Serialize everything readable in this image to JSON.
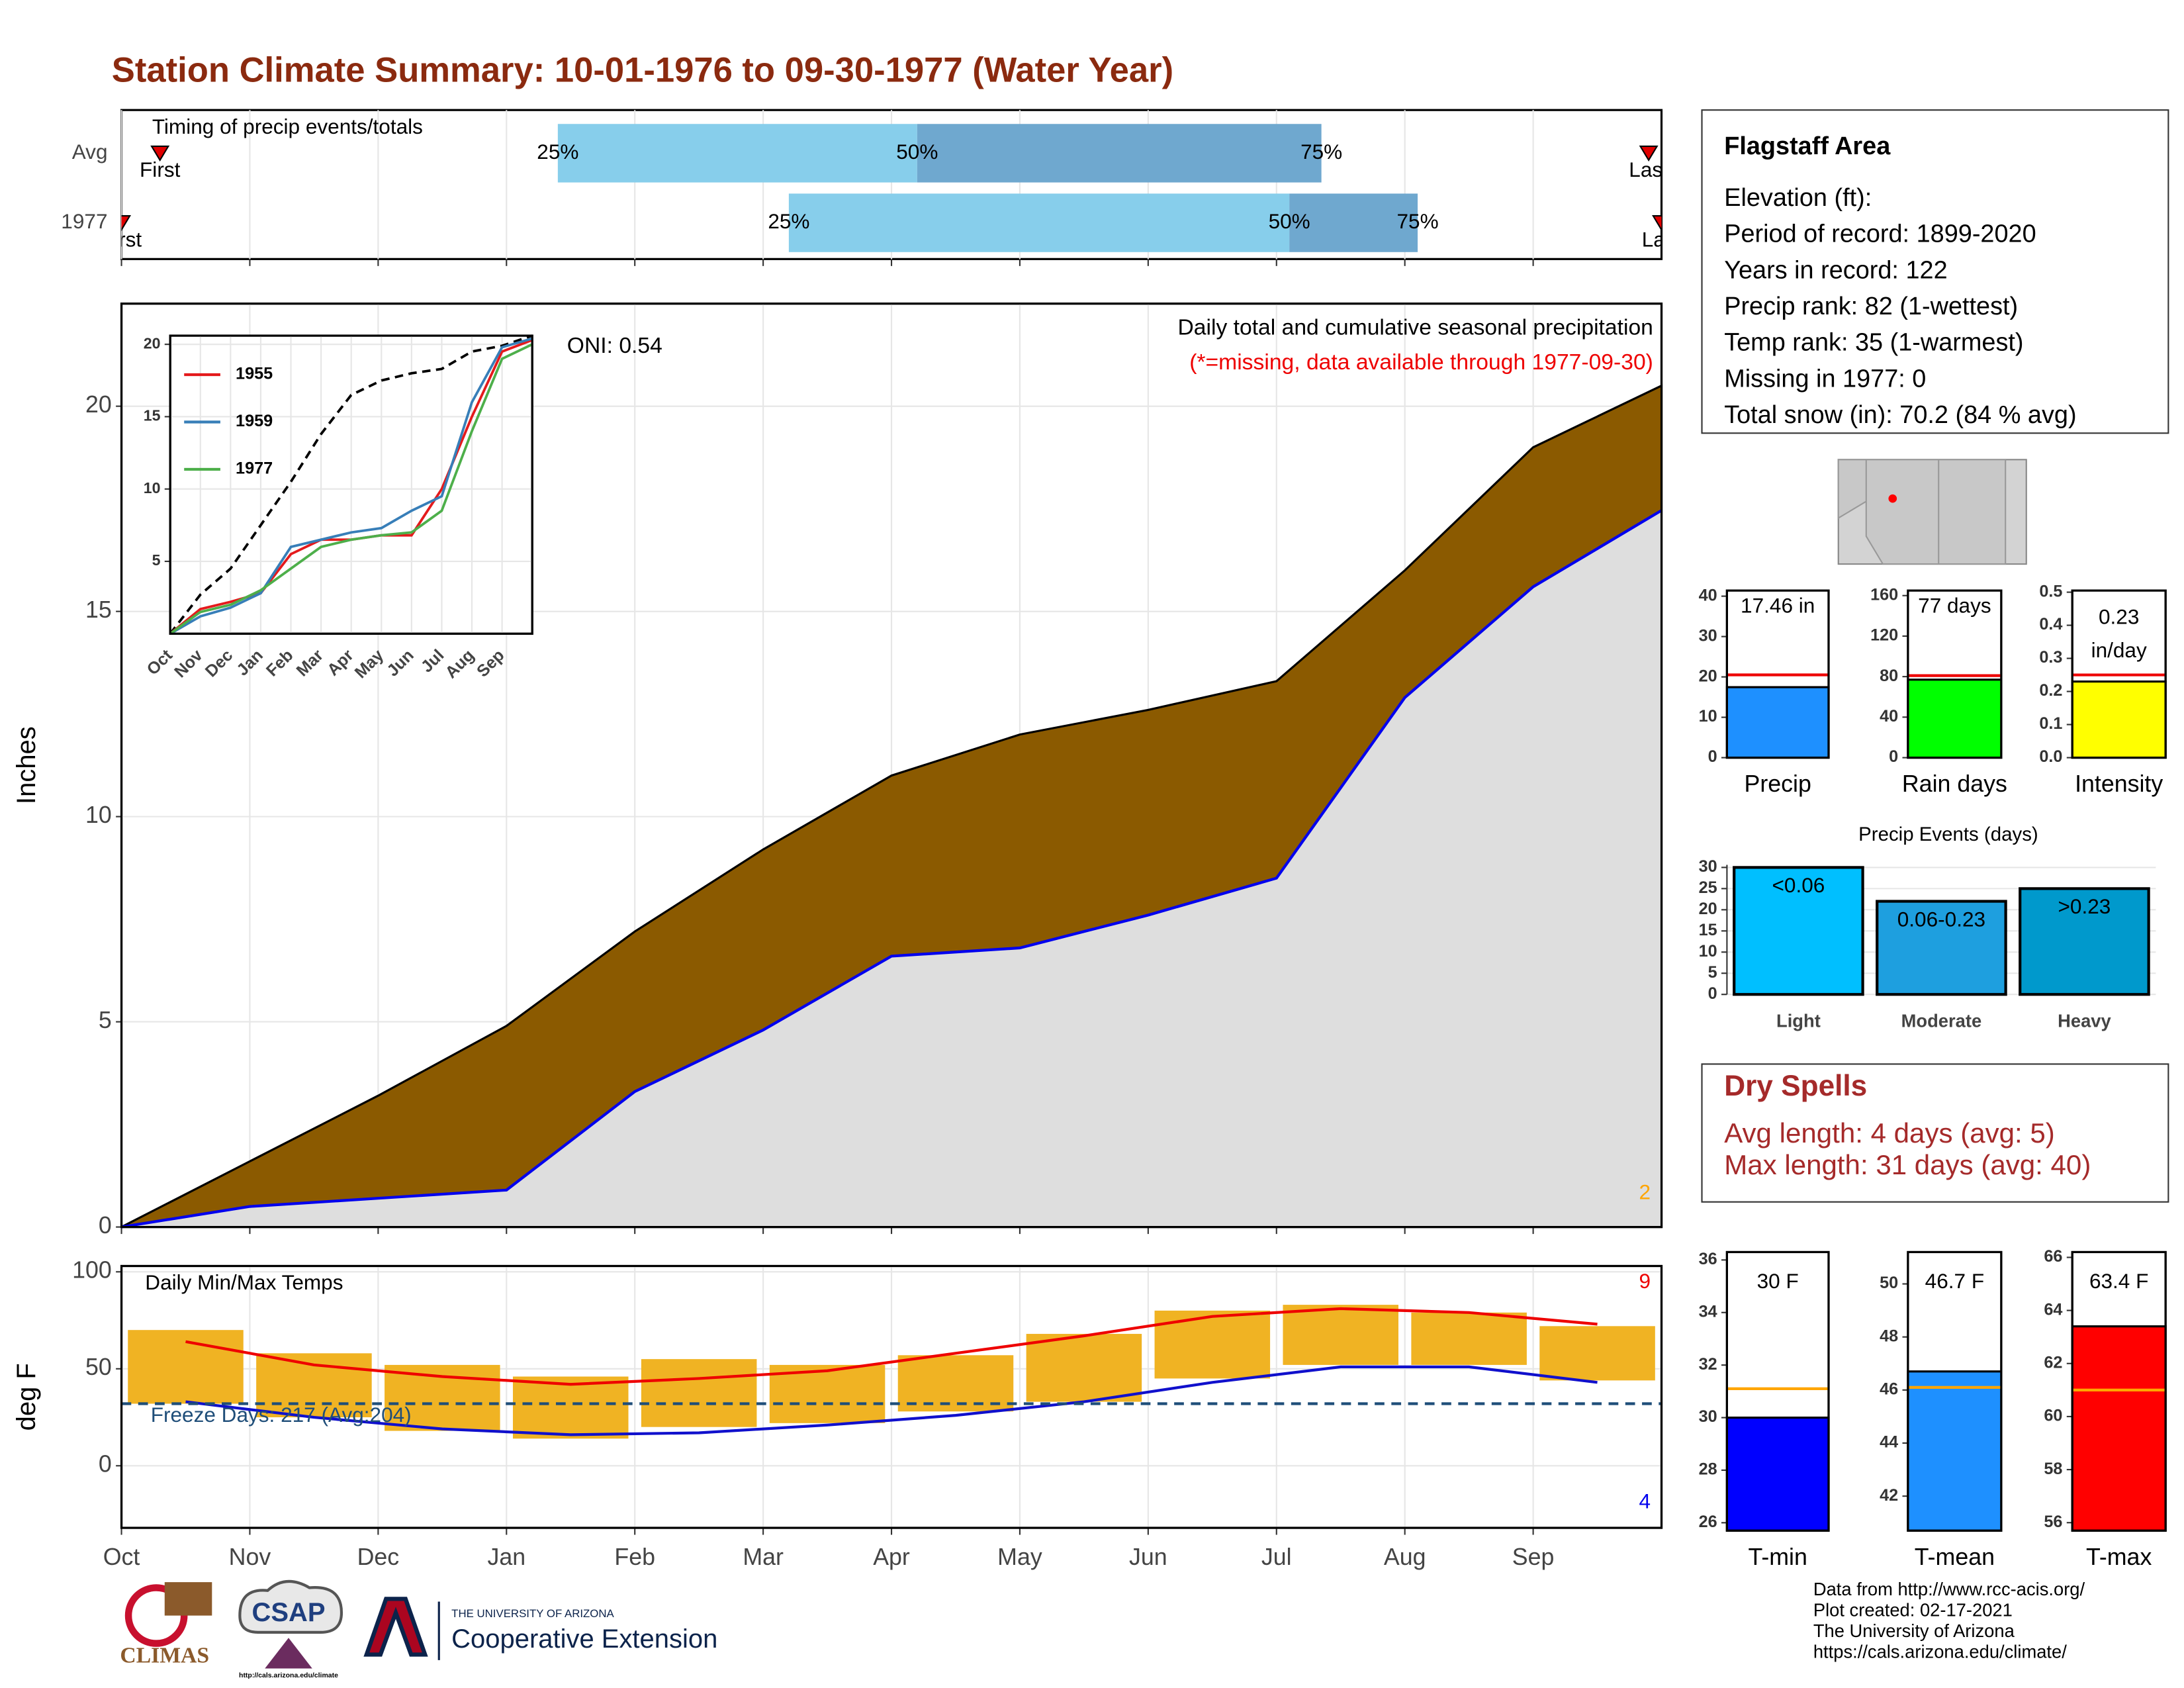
{
  "title": "Station Climate Summary: 10-01-1976 to 09-30-1977 (Water Year)",
  "chart_data": [
    {
      "type": "timing",
      "title": "Timing of precip events/totals",
      "categories": [
        "Avg",
        "1977"
      ],
      "xlim": [
        0,
        12
      ],
      "first_label": "First",
      "last_label": "Last",
      "quantile_labels": [
        "25%",
        "50%",
        "75%"
      ],
      "color_low": "#87ceeb",
      "color_high": "#6fa8cf",
      "marker_color": "#e00000",
      "rows": [
        {
          "first": 0.3,
          "q25": 3.4,
          "q50": 6.2,
          "q75": 9.35,
          "last": 11.9
        },
        {
          "first": 0.0,
          "q25": 5.2,
          "q50": 9.1,
          "q75": 10.1,
          "last": 12.0
        }
      ]
    },
    {
      "type": "area",
      "title": "Daily total and cumulative seasonal precipitation",
      "subtitle": "(*=missing, data available through 1977-09-30)",
      "annotation": "ONI: 0.54",
      "y_label": "Inches",
      "categories": [
        "Oct",
        "Nov",
        "Dec",
        "Jan",
        "Feb",
        "Mar",
        "Apr",
        "May",
        "Jun",
        "Jul",
        "Aug",
        "Sep"
      ],
      "xlim": [
        0,
        12
      ],
      "ylim": [
        0,
        22.5
      ],
      "yticks": [
        0,
        5,
        10,
        15,
        20
      ],
      "average": {
        "color": "#8b5a00",
        "values": [
          1.6,
          3.2,
          4.9,
          7.2,
          9.2,
          11.0,
          12.0,
          12.6,
          13.3,
          16.0,
          19.0,
          20.5
        ]
      },
      "observed": {
        "color": "#0000ee",
        "values": [
          0.5,
          0.7,
          0.9,
          3.3,
          4.8,
          6.6,
          6.8,
          7.6,
          8.5,
          12.9,
          15.6,
          17.46
        ]
      },
      "observed_fill": "#dedede",
      "extreme_count": 2,
      "extreme_color": "#ffa500"
    },
    {
      "type": "line",
      "categories": [
        "Oct",
        "Nov",
        "Dec",
        "Jan",
        "Feb",
        "Mar",
        "Apr",
        "May",
        "Jun",
        "Jul",
        "Aug",
        "Sep"
      ],
      "xlim": [
        0,
        12
      ],
      "ylim": [
        0,
        20.6
      ],
      "yticks": [
        5,
        10,
        15,
        20
      ],
      "average": {
        "color": "#000000",
        "values": [
          2.7,
          4.5,
          7.5,
          10.5,
          13.8,
          16.5,
          17.5,
          18.0,
          18.3,
          19.5,
          19.9,
          20.6
        ]
      },
      "series": [
        {
          "name": "1955",
          "color": "#e41a1c",
          "values": [
            1.7,
            2.2,
            2.8,
            5.5,
            6.5,
            6.5,
            6.8,
            6.8,
            10.0,
            15.0,
            19.5,
            20.3
          ]
        },
        {
          "name": "1959",
          "color": "#377eb8",
          "values": [
            1.2,
            1.8,
            2.8,
            6.0,
            6.5,
            7.0,
            7.3,
            8.5,
            9.5,
            16.0,
            19.8,
            20.4
          ]
        },
        {
          "name": "1977",
          "color": "#4daf4a",
          "values": [
            1.5,
            2.0,
            3.0,
            4.5,
            6.0,
            6.5,
            6.8,
            7.0,
            8.5,
            14.0,
            19.0,
            20.0
          ]
        }
      ]
    },
    {
      "type": "range",
      "title": "Daily Min/Max Temps",
      "annotation": "Freeze Days: 217 (Avg:204)",
      "y_label": "deg F",
      "xlim": [
        0,
        12
      ],
      "ylim": [
        -32,
        103
      ],
      "yticks": [
        0,
        50,
        100
      ],
      "obs_color": "#f0b323",
      "obs_max": [
        70,
        58,
        52,
        46,
        55,
        52,
        57,
        68,
        80,
        83,
        79,
        72
      ],
      "obs_min": [
        32,
        25,
        18,
        14,
        20,
        22,
        28,
        33,
        45,
        52,
        52,
        44
      ],
      "normal_max": {
        "color": "#ee0000",
        "values": [
          64,
          52,
          46,
          42,
          45,
          49,
          58,
          67,
          77,
          81,
          79,
          73
        ]
      },
      "normal_min": {
        "color": "#1010cc",
        "values": [
          33,
          25,
          19,
          16,
          17,
          21,
          26,
          33,
          43,
          51,
          51,
          43
        ]
      },
      "freeze": 32,
      "warm_count": 9,
      "cold_count": 4
    },
    {
      "type": "bar",
      "category": "Precip",
      "value": 17.46,
      "value_label": "17.46 in",
      "average": 20.5,
      "color": "#1e90ff",
      "average_color": "#ee0000",
      "ylim": [
        0,
        41.4
      ],
      "yticks": [
        0,
        10,
        20,
        30,
        40
      ]
    },
    {
      "type": "bar",
      "category": "Rain days",
      "value": 77,
      "value_label": "77 days",
      "average": 81,
      "color": "#00ff00",
      "average_color": "#ee0000",
      "ylim": [
        0,
        165
      ],
      "yticks": [
        0,
        40,
        80,
        120,
        160
      ]
    },
    {
      "type": "bar",
      "category": "Intensity",
      "value": 0.23,
      "value_label": "0.23",
      "unit_label": "in/day",
      "average": 0.25,
      "color": "#ffff00",
      "average_color": "#ee0000",
      "ylim": [
        0,
        0.505
      ],
      "yticks": [
        {
          "value": 0,
          "label": "0.0"
        },
        0.1,
        0.2,
        0.3,
        0.4,
        0.5
      ]
    },
    {
      "type": "events",
      "title": "Precip Events (days)",
      "categories": [
        "Light",
        "Moderate",
        "Heavy"
      ],
      "values": [
        30,
        22,
        25
      ],
      "bin_labels": [
        "<0.06",
        "0.06-0.23",
        ">0.23"
      ],
      "colors": [
        "#00bfff",
        "#1e9fdf",
        "#0099cc"
      ],
      "ylim": [
        0,
        30.6
      ],
      "yticks": [
        0,
        5,
        10,
        15,
        20,
        25,
        30
      ]
    },
    {
      "type": "bar",
      "category": "T-min",
      "value": 30,
      "value_label": "30 F",
      "average": 31.1,
      "color": "#0000ff",
      "average_color": "#ffa500",
      "ylim": [
        25.7,
        36.3
      ],
      "yticks": [
        26,
        28,
        30,
        32,
        34,
        36
      ]
    },
    {
      "type": "bar",
      "category": "T-mean",
      "value": 46.7,
      "value_label": "46.7 F",
      "average": 46.1,
      "color": "#1e90ff",
      "average_color": "#ffa500",
      "ylim": [
        40.7,
        51.2
      ],
      "yticks": [
        42,
        44,
        46,
        48,
        50
      ]
    },
    {
      "type": "bar",
      "category": "T-max",
      "value": 63.4,
      "value_label": "63.4 F",
      "average": 61,
      "color": "#ff0000",
      "average_color": "#ffa500",
      "ylim": [
        55.7,
        66.2
      ],
      "yticks": [
        56,
        58,
        60,
        62,
        64,
        66
      ]
    }
  ],
  "station": {
    "name": "Flagstaff Area",
    "lines": [
      "Elevation (ft):",
      "Period of record: 1899-2020",
      "Years in record: 122",
      "Precip rank: 82 (1-wettest)",
      "Temp rank: 35 (1-warmest)",
      "Missing in 1977: 0",
      "Total snow (in): 70.2 (84 % avg)"
    ]
  },
  "dry_spells": {
    "title": "Dry Spells",
    "lines": [
      "Avg length: 4 days (avg: 5)",
      "Max length: 31 days (avg: 40)"
    ]
  },
  "footer": [
    "Data from http://www.rcc-acis.org/",
    "Plot created: 02-17-2021",
    "The University of Arizona",
    "https://cals.arizona.edu/climate/"
  ],
  "logos": {
    "climas": "CLIMAS",
    "csap": "CSAP",
    "csap_url": "http://cals.arizona.edu/climate",
    "ua": "THE UNIVERSITY OF ARIZONA",
    "extension": "Cooperative Extension"
  }
}
